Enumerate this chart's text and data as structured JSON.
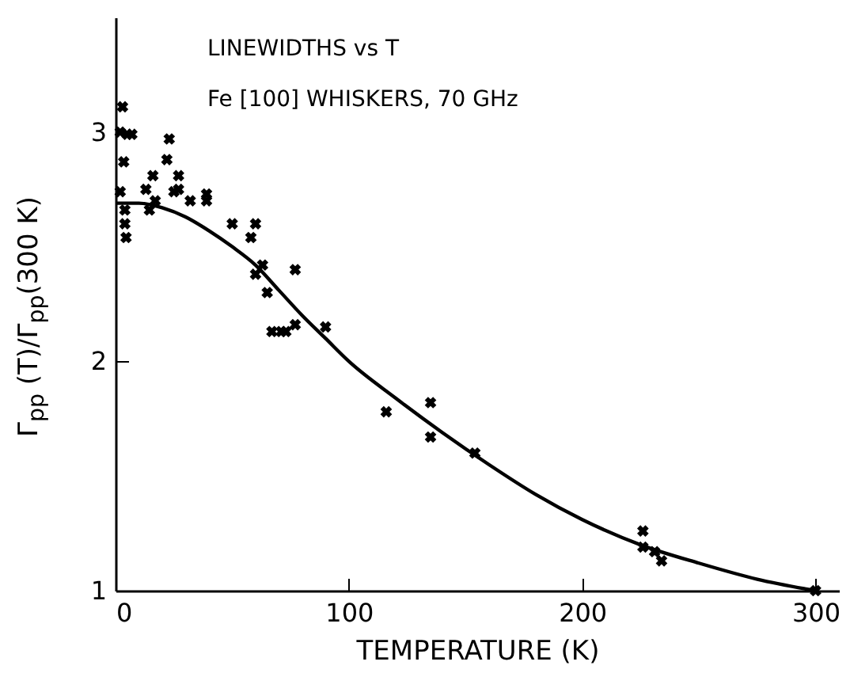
{
  "chart_data": {
    "type": "scatter",
    "xlabel": "TEMPERATURE (K)",
    "ylabel": "Γ$_{pp}$ (T)/Γ$_{pp}$(300 K)",
    "annotations": [
      "LINEWIDTHS vs T",
      "Fe [100] WHISKERS, 70 GHz"
    ],
    "xlim": [
      0,
      310
    ],
    "xticks": [
      0,
      100,
      200,
      300
    ],
    "ylim": [
      1,
      3.5
    ],
    "yticks": [
      1,
      2,
      3
    ],
    "grid": false,
    "series": [
      {
        "marker": "cross",
        "color": "#000000",
        "x": [
          3,
          2,
          5,
          7,
          3.5,
          2,
          4,
          4,
          4.5,
          13,
          16,
          14.5,
          17,
          23,
          22,
          25,
          27,
          27,
          32,
          39,
          39,
          50,
          60,
          58,
          63,
          60,
          77,
          65,
          67,
          71,
          73,
          77,
          90,
          116,
          135,
          135,
          154,
          226,
          226,
          231,
          234,
          300
        ],
        "values": [
          3.11,
          3.0,
          2.99,
          2.99,
          2.87,
          2.74,
          2.66,
          2.6,
          2.54,
          2.75,
          2.81,
          2.66,
          2.7,
          2.97,
          2.88,
          2.74,
          2.81,
          2.75,
          2.7,
          2.73,
          2.7,
          2.6,
          2.6,
          2.54,
          2.42,
          2.38,
          2.4,
          2.3,
          2.13,
          2.13,
          2.13,
          2.16,
          2.15,
          1.78,
          1.82,
          1.67,
          1.6,
          1.26,
          1.19,
          1.17,
          1.13,
          1.0
        ]
      },
      {
        "type": "line",
        "marker": "none",
        "line_style": "solid",
        "color": "#000000",
        "x": [
          0,
          10,
          20,
          30,
          40,
          50,
          60,
          70,
          80,
          90,
          100,
          120,
          140,
          160,
          180,
          200,
          225,
          250,
          275,
          300
        ],
        "values": [
          2.69,
          2.69,
          2.67,
          2.63,
          2.57,
          2.5,
          2.42,
          2.31,
          2.2,
          2.1,
          2.0,
          1.84,
          1.69,
          1.55,
          1.42,
          1.31,
          1.2,
          1.12,
          1.05,
          1.0
        ]
      }
    ]
  }
}
